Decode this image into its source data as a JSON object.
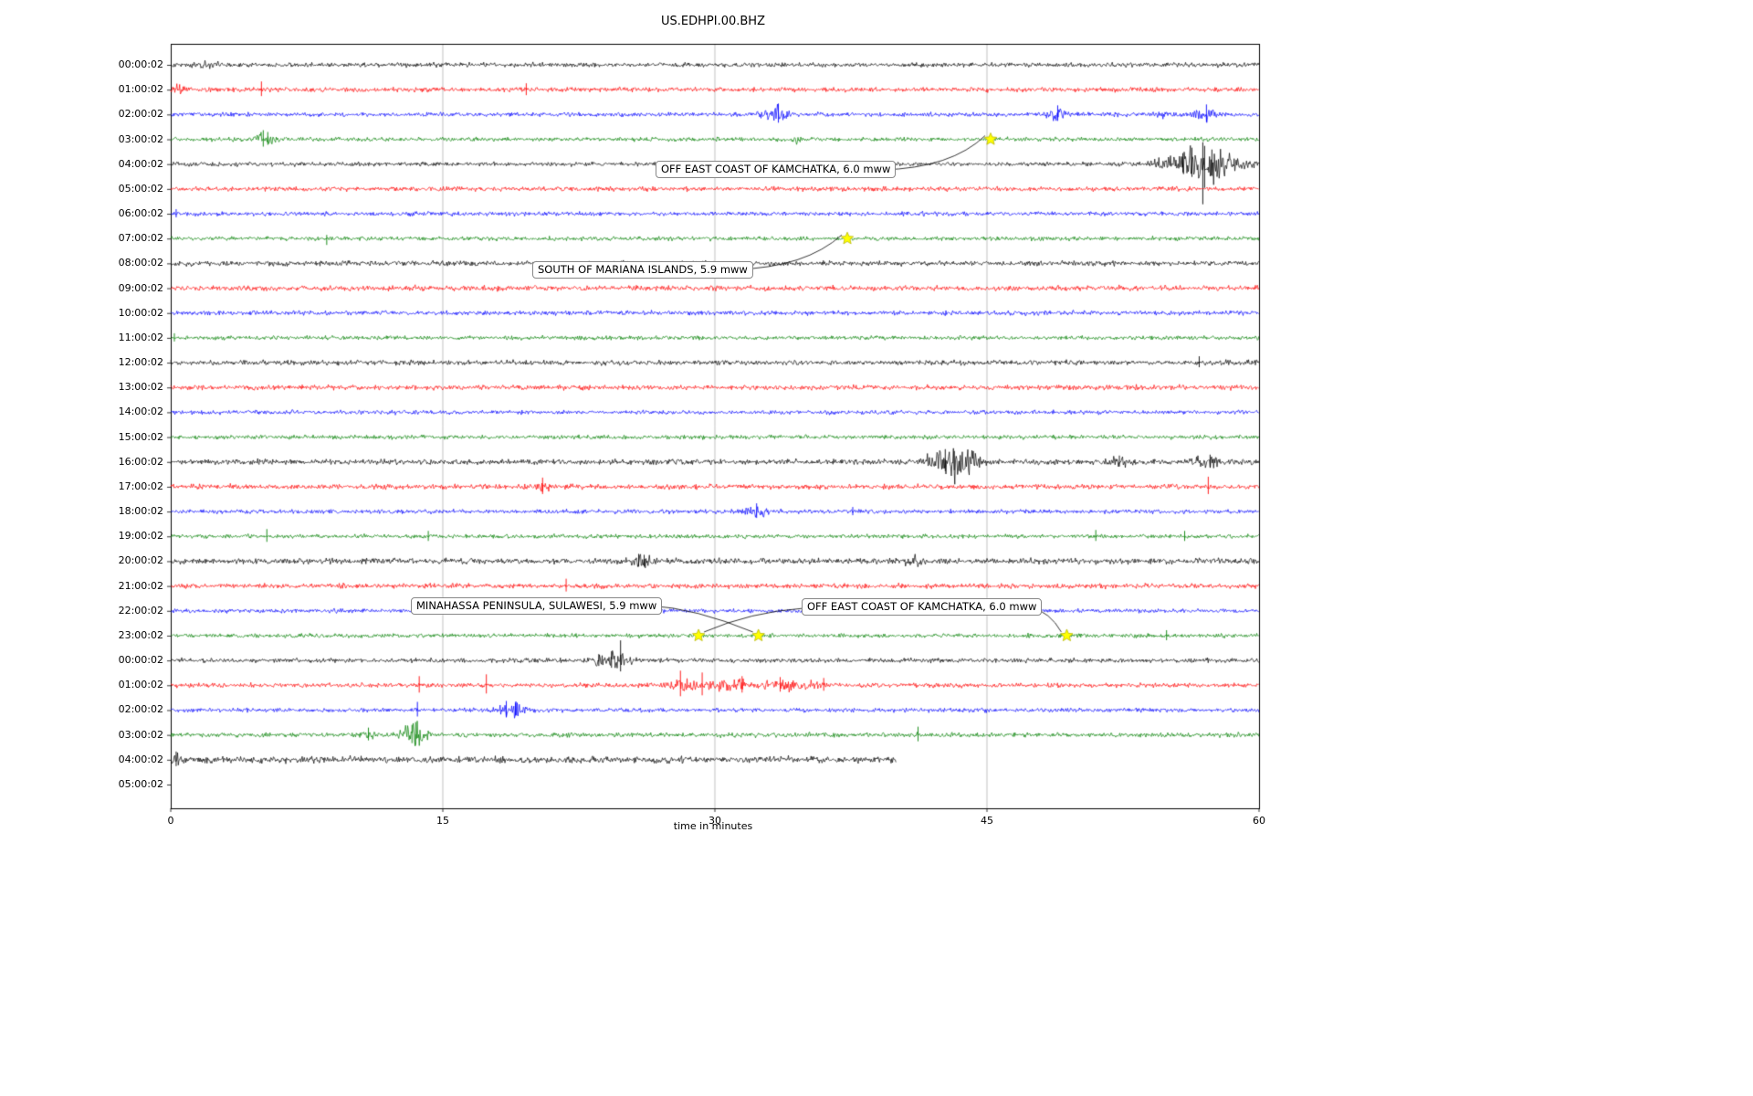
{
  "chart_data": {
    "type": "line",
    "subtype": "seismogram-dayplot",
    "title": "US.EDHPI.00.BHZ",
    "xlabel": "time in minutes",
    "ylabel": "",
    "x_range_minutes": [
      0,
      60
    ],
    "x_tick_minutes": [
      0,
      15,
      30,
      45,
      60
    ],
    "x_tick_labels": [
      "0",
      "15",
      "30",
      "45",
      "60"
    ],
    "grid_vertical_minutes": [
      15,
      30,
      45
    ],
    "colors_cycle": [
      "#000000",
      "#ff0000",
      "#0000ff",
      "#008000"
    ],
    "marker_color": "#ffff00",
    "rows": [
      {
        "label": "00:00:02",
        "color": "#000000",
        "amp": 2.2,
        "bursts": [
          [
            2.0,
            0.5,
            0.8
          ]
        ],
        "spikes": []
      },
      {
        "label": "01:00:02",
        "color": "#ff0000",
        "amp": 2.2,
        "bursts": [
          [
            0.5,
            0.3,
            1.5
          ]
        ],
        "spikes": [
          [
            5.0,
            9,
            7
          ],
          [
            19.6,
            7,
            6
          ]
        ]
      },
      {
        "label": "02:00:02",
        "color": "#0000ff",
        "amp": 2.0,
        "bursts": [
          [
            33.4,
            0.5,
            3.5
          ],
          [
            48.8,
            0.4,
            2.5
          ],
          [
            54.6,
            0.3,
            1.5
          ],
          [
            57.0,
            0.4,
            3.0
          ]
        ],
        "spikes": [
          [
            33.5,
            12,
            9
          ],
          [
            48.9,
            10,
            7
          ],
          [
            57.1,
            11,
            8
          ]
        ]
      },
      {
        "label": "03:00:02",
        "color": "#008000",
        "amp": 2.0,
        "bursts": [
          [
            5.2,
            0.4,
            2.5
          ],
          [
            34.6,
            0.3,
            1.2
          ]
        ],
        "spikes": [
          [
            5.1,
            10,
            8
          ],
          [
            5.35,
            8,
            6
          ]
        ]
      },
      {
        "label": "04:00:02",
        "color": "#000000",
        "amp": 2.0,
        "bursts": [
          [
            56.8,
            1.4,
            8.0
          ]
        ],
        "spikes": [
          [
            56.9,
            24,
            44
          ],
          [
            56.3,
            18,
            14
          ],
          [
            57.4,
            16,
            13
          ],
          [
            55.8,
            12,
            9
          ],
          [
            57.0,
            20,
            26
          ]
        ]
      },
      {
        "label": "05:00:02",
        "color": "#ff0000",
        "amp": 2.2,
        "bursts": [],
        "spikes": []
      },
      {
        "label": "06:00:02",
        "color": "#0000ff",
        "amp": 2.0,
        "bursts": [],
        "spikes": [
          [
            0.3,
            5,
            4
          ]
        ]
      },
      {
        "label": "07:00:02",
        "color": "#008000",
        "amp": 2.0,
        "bursts": [],
        "spikes": [
          [
            8.6,
            4,
            7
          ]
        ]
      },
      {
        "label": "08:00:02",
        "color": "#000000",
        "amp": 2.4,
        "bursts": [],
        "spikes": []
      },
      {
        "label": "09:00:02",
        "color": "#ff0000",
        "amp": 2.6,
        "bursts": [],
        "spikes": []
      },
      {
        "label": "10:00:02",
        "color": "#0000ff",
        "amp": 2.2,
        "bursts": [],
        "spikes": []
      },
      {
        "label": "11:00:02",
        "color": "#008000",
        "amp": 2.0,
        "bursts": [],
        "spikes": [
          [
            0.2,
            5,
            4
          ]
        ]
      },
      {
        "label": "12:00:02",
        "color": "#000000",
        "amp": 2.4,
        "bursts": [],
        "spikes": [
          [
            56.7,
            7,
            5
          ]
        ]
      },
      {
        "label": "13:00:02",
        "color": "#ff0000",
        "amp": 2.4,
        "bursts": [],
        "spikes": []
      },
      {
        "label": "14:00:02",
        "color": "#0000ff",
        "amp": 2.0,
        "bursts": [],
        "spikes": []
      },
      {
        "label": "15:00:02",
        "color": "#008000",
        "amp": 2.0,
        "bursts": [],
        "spikes": []
      },
      {
        "label": "16:00:02",
        "color": "#000000",
        "amp": 2.6,
        "bursts": [
          [
            42.9,
            0.9,
            5.0
          ],
          [
            43.8,
            0.5,
            3.0
          ],
          [
            52.2,
            0.4,
            1.5
          ],
          [
            57.2,
            0.5,
            2.0
          ]
        ],
        "spikes": [
          [
            42.7,
            14,
            10
          ],
          [
            43.2,
            12,
            9
          ],
          [
            52.3,
            7,
            5
          ],
          [
            57.3,
            8,
            6
          ]
        ]
      },
      {
        "label": "17:00:02",
        "color": "#ff0000",
        "amp": 2.4,
        "bursts": [
          [
            20.4,
            0.3,
            2.0
          ]
        ],
        "spikes": [
          [
            20.5,
            10,
            8
          ],
          [
            57.2,
            11,
            8
          ]
        ]
      },
      {
        "label": "18:00:02",
        "color": "#0000ff",
        "amp": 2.0,
        "bursts": [
          [
            32.2,
            0.4,
            2.5
          ]
        ],
        "spikes": [
          [
            32.3,
            9,
            7
          ],
          [
            37.6,
            5,
            4
          ]
        ]
      },
      {
        "label": "19:00:02",
        "color": "#008000",
        "amp": 2.0,
        "bursts": [],
        "spikes": [
          [
            5.3,
            8,
            6
          ],
          [
            14.2,
            6,
            5
          ],
          [
            51.0,
            7,
            5
          ],
          [
            55.9,
            6,
            5
          ]
        ]
      },
      {
        "label": "20:00:02",
        "color": "#000000",
        "amp": 2.8,
        "bursts": [
          [
            25.9,
            0.4,
            2.5
          ],
          [
            41.0,
            0.3,
            1.5
          ]
        ],
        "spikes": [
          [
            25.8,
            8,
            6
          ],
          [
            26.1,
            7,
            6
          ]
        ]
      },
      {
        "label": "21:00:02",
        "color": "#ff0000",
        "amp": 2.4,
        "bursts": [],
        "spikes": [
          [
            21.8,
            8,
            6
          ]
        ]
      },
      {
        "label": "22:00:02",
        "color": "#0000ff",
        "amp": 2.0,
        "bursts": [],
        "spikes": []
      },
      {
        "label": "23:00:02",
        "color": "#008000",
        "amp": 2.0,
        "bursts": [],
        "spikes": [
          [
            54.9,
            6,
            5
          ]
        ]
      },
      {
        "label": "00:00:02",
        "color": "#000000",
        "amp": 2.2,
        "bursts": [
          [
            24.3,
            0.7,
            3.0
          ]
        ],
        "spikes": [
          [
            24.8,
            22,
            12
          ],
          [
            24.3,
            10,
            8
          ],
          [
            23.6,
            7,
            6
          ]
        ]
      },
      {
        "label": "01:00:02",
        "color": "#ff0000",
        "amp": 2.2,
        "bursts": [
          [
            28.3,
            0.6,
            2.5
          ],
          [
            30.8,
            0.8,
            2.2
          ],
          [
            33.8,
            1.2,
            1.8
          ]
        ],
        "spikes": [
          [
            13.7,
            10,
            8
          ],
          [
            17.4,
            12,
            9
          ],
          [
            28.1,
            16,
            12
          ],
          [
            29.3,
            14,
            11
          ],
          [
            31.5,
            10,
            8
          ],
          [
            33.6,
            9,
            7
          ],
          [
            36.0,
            8,
            6
          ]
        ]
      },
      {
        "label": "02:00:02",
        "color": "#0000ff",
        "amp": 2.0,
        "bursts": [
          [
            18.8,
            0.5,
            3.0
          ]
        ],
        "spikes": [
          [
            13.6,
            9,
            7
          ],
          [
            18.5,
            10,
            8
          ],
          [
            19.0,
            8,
            6
          ]
        ]
      },
      {
        "label": "03:00:02",
        "color": "#008000",
        "amp": 2.2,
        "bursts": [
          [
            13.4,
            0.5,
            5.0
          ],
          [
            10.9,
            0.3,
            2.0
          ]
        ],
        "spikes": [
          [
            13.5,
            14,
            11
          ],
          [
            13.3,
            11,
            9
          ],
          [
            10.9,
            8,
            6
          ],
          [
            41.2,
            9,
            7
          ]
        ]
      },
      {
        "label": "04:00:02",
        "color": "#000000",
        "amp": 3.2,
        "end_min": 40.0,
        "bursts": [
          [
            0.3,
            0.2,
            1.5
          ]
        ],
        "spikes": [
          [
            0.3,
            9,
            7
          ]
        ]
      },
      {
        "label": "05:00:02",
        "color": "#ff0000",
        "amp": 0,
        "draw": false,
        "bursts": [],
        "spikes": []
      }
    ],
    "events": [
      {
        "label": "OFF EAST COAST OF KAMCHATKA, 6.0 mww",
        "row": 3,
        "row_label": "03:00:02",
        "marker_minutes": [
          45.2
        ]
      },
      {
        "label": "SOUTH OF MARIANA ISLANDS, 5.9 mww",
        "row": 7,
        "row_label": "07:00:02",
        "marker_minutes": [
          37.3
        ]
      },
      {
        "label": "MINAHASSA PENINSULA, SULAWESI, 5.9 mww",
        "row": 23,
        "row_label": "23:00:02",
        "marker_minutes": [
          29.1,
          32.4
        ]
      },
      {
        "label": "OFF EAST COAST OF KAMCHATKA, 6.0 mww",
        "row": 23,
        "row_label": "23:00:02",
        "marker_minutes": [
          49.4
        ]
      }
    ]
  }
}
